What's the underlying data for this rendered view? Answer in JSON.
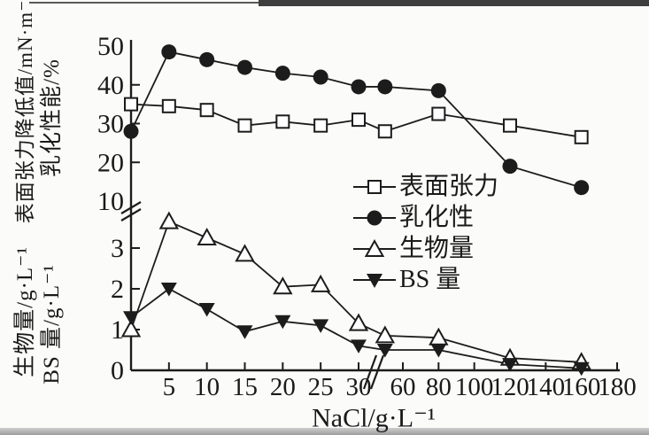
{
  "colors": {
    "ink": "#1c1c1c",
    "background": "#fbfbf9"
  },
  "chart_data": {
    "type": "line",
    "x_axis_label": "NaCl/g·L⁻¹",
    "y_axis_titles": {
      "upper_outer": "表面张力降低值/mN·m⁻¹",
      "upper_inner": "乳化性能/%",
      "lower_outer": "生物量/g·L⁻¹",
      "lower_inner": "BS 量/g·L⁻¹"
    },
    "x": [
      0,
      5,
      10,
      15,
      20,
      25,
      30,
      50,
      80,
      120,
      160
    ],
    "x_ticks": {
      "before_break": [
        5,
        10,
        15,
        20,
        25,
        30
      ],
      "after_break": [
        60,
        80,
        100,
        120,
        140,
        160,
        180
      ]
    },
    "x_axis_break_between": [
      30,
      60
    ],
    "y_ticks": {
      "upper": [
        10,
        20,
        30,
        40,
        50
      ],
      "lower": [
        0,
        1,
        2,
        3
      ]
    },
    "y_axis_break_between": [
      3,
      10
    ],
    "series": [
      {
        "id": "surface-tension",
        "name": "表面张力",
        "marker": "square-open",
        "scale": "upper",
        "values": [
          35,
          34.5,
          33.5,
          29.5,
          30.5,
          29.5,
          31,
          28,
          32.5,
          29.5,
          26.5
        ]
      },
      {
        "id": "emulsification",
        "name": "乳化性",
        "marker": "circle-filled",
        "scale": "upper",
        "values": [
          28,
          48.5,
          46.5,
          44.5,
          43,
          42,
          39.5,
          39.5,
          38.5,
          19,
          13.5
        ]
      },
      {
        "id": "biomass",
        "name": "生物量",
        "marker": "triangle-open",
        "scale": "lower",
        "values": [
          1.0,
          3.65,
          3.25,
          2.85,
          2.05,
          2.1,
          1.15,
          0.85,
          0.8,
          0.3,
          0.2
        ]
      },
      {
        "id": "bs-amount",
        "name": "BS 量",
        "marker": "triangle-filled-down",
        "scale": "lower",
        "values": [
          1.3,
          2.0,
          1.5,
          0.95,
          1.2,
          1.1,
          0.6,
          0.5,
          0.5,
          0.15,
          0.05
        ]
      }
    ],
    "legend": [
      {
        "label": "表面张力",
        "marker": "square-open"
      },
      {
        "label": "乳化性",
        "marker": "circle-filled"
      },
      {
        "label": "生物量",
        "marker": "triangle-open"
      },
      {
        "label": "BS 量",
        "marker": "triangle-filled-down"
      }
    ],
    "legend_position": "center-right",
    "grid": false
  }
}
